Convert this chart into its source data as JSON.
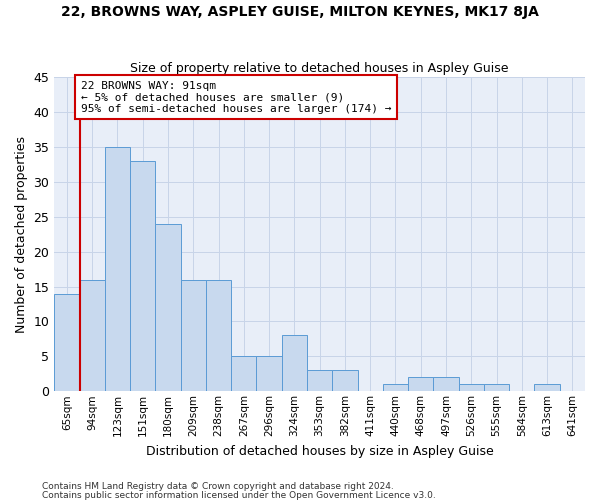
{
  "title": "22, BROWNS WAY, ASPLEY GUISE, MILTON KEYNES, MK17 8JA",
  "subtitle": "Size of property relative to detached houses in Aspley Guise",
  "xlabel": "Distribution of detached houses by size in Aspley Guise",
  "ylabel": "Number of detached properties",
  "categories": [
    "65sqm",
    "94sqm",
    "123sqm",
    "151sqm",
    "180sqm",
    "209sqm",
    "238sqm",
    "267sqm",
    "296sqm",
    "324sqm",
    "353sqm",
    "382sqm",
    "411sqm",
    "440sqm",
    "468sqm",
    "497sqm",
    "526sqm",
    "555sqm",
    "584sqm",
    "613sqm",
    "641sqm"
  ],
  "values": [
    14,
    16,
    35,
    33,
    24,
    16,
    16,
    5,
    5,
    8,
    3,
    3,
    0,
    1,
    2,
    2,
    1,
    1,
    0,
    1,
    0
  ],
  "bar_color": "#c8d9ee",
  "bar_edge_color": "#5b9bd5",
  "annotation_text": "22 BROWNS WAY: 91sqm\n← 5% of detached houses are smaller (9)\n95% of semi-detached houses are larger (174) →",
  "annotation_box_color": "#ffffff",
  "annotation_box_edge": "#cc0000",
  "vline_color": "#cc0000",
  "ylim": [
    0,
    45
  ],
  "grid_color": "#c8d4e8",
  "fig_bg_color": "#ffffff",
  "ax_bg_color": "#e8eef8",
  "footer1": "Contains HM Land Registry data © Crown copyright and database right 2024.",
  "footer2": "Contains public sector information licensed under the Open Government Licence v3.0."
}
